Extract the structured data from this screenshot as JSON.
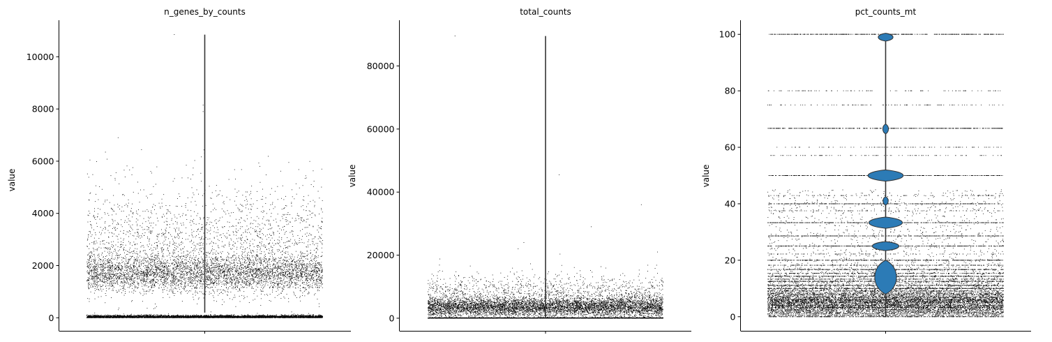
{
  "figure": {
    "violin_color": "#2c7bb6",
    "point_color": "#000000",
    "axis_color": "#000000"
  },
  "chart_data": [
    {
      "type": "violin",
      "title": "n_genes_by_counts",
      "ylabel": "value",
      "ylim": [
        -500,
        11400
      ],
      "yticks": [
        0,
        2000,
        4000,
        6000,
        8000,
        10000
      ],
      "ytick_labels": [
        "0",
        "2000",
        "4000",
        "6000",
        "8000",
        "10000"
      ],
      "distribution": {
        "clusters": [
          {
            "center": 30,
            "spread": 35,
            "weight": 0.45
          },
          {
            "center": 1700,
            "spread": 350,
            "weight": 0.35
          },
          {
            "center": 2600,
            "spread": 900,
            "weight": 0.17
          },
          {
            "center": 4200,
            "spread": 900,
            "weight": 0.03
          }
        ],
        "max": 10850,
        "outliers": [
          7900,
          8150,
          6900,
          5800,
          5950,
          10850
        ],
        "n_points": 11000
      },
      "violin": {
        "min": 200,
        "max": 10850
      }
    },
    {
      "type": "violin",
      "title": "total_counts",
      "ylabel": "value",
      "ylim": [
        -4000,
        94500
      ],
      "yticks": [
        0,
        20000,
        40000,
        60000,
        80000
      ],
      "ytick_labels": [
        "0",
        "20000",
        "40000",
        "60000",
        "80000"
      ],
      "distribution": {
        "clusters": [
          {
            "center": 60,
            "spread": 50,
            "weight": 0.35
          },
          {
            "center": 3500,
            "spread": 1500,
            "weight": 0.5
          },
          {
            "center": 7000,
            "spread": 3500,
            "weight": 0.15
          }
        ],
        "max": 89500,
        "outliers": [
          89500,
          45500,
          36000,
          29000,
          24000,
          22000,
          21000
        ],
        "n_points": 11000
      },
      "violin": {
        "min": 0,
        "max": 89500
      }
    },
    {
      "type": "violin",
      "title": "pct_counts_mt",
      "ylabel": "value",
      "ylim": [
        -5,
        105
      ],
      "yticks": [
        0,
        20,
        40,
        60,
        80,
        100
      ],
      "ytick_labels": [
        "0",
        "20",
        "40",
        "60",
        "80",
        "100"
      ],
      "distribution": {
        "levels": [
          100,
          80,
          75,
          66.7,
          60,
          57.1,
          50,
          42.9,
          40,
          37.5,
          33.3,
          28.6,
          25,
          22.2,
          20,
          18.2,
          16.7,
          15.4,
          14.3,
          13.3,
          12.5,
          11.1,
          10,
          9.1,
          8.3,
          7.7,
          7.1,
          6.7,
          6.25,
          5.9,
          5.6,
          5.3,
          5,
          4.5,
          4,
          3.6,
          3.3,
          3,
          2.5,
          2,
          1.5,
          1,
          0.5,
          0
        ],
        "heavy_levels": [
          100,
          66.7,
          50,
          40,
          33.3,
          28.6,
          25,
          20,
          16.7,
          14.3,
          12.5,
          11.1,
          10,
          0
        ],
        "n_points": 11000
      },
      "violin": {
        "min": 0,
        "max": 100,
        "bulges": [
          {
            "y": 99,
            "half_width": 0.034,
            "height": 2.8
          },
          {
            "y": 66.5,
            "half_width": 0.013,
            "height": 3.5
          },
          {
            "y": 50,
            "half_width": 0.081,
            "height": 4
          },
          {
            "y": 33.3,
            "half_width": 0.077,
            "height": 4
          },
          {
            "y": 25,
            "half_width": 0.061,
            "height": 3.2
          },
          {
            "y": 41,
            "half_width": 0.012,
            "height": 3
          },
          {
            "y": 14,
            "half_width": 0.05,
            "height": 12
          }
        ]
      }
    }
  ]
}
